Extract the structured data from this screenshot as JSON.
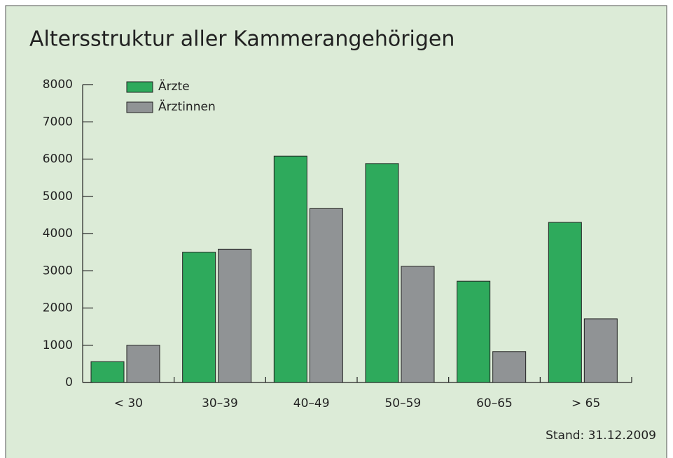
{
  "chart_data": {
    "type": "bar",
    "title": "Altersstruktur aller Kammerangehörigen",
    "categories": [
      "< 30",
      "30–39",
      "40–49",
      "50–59",
      "60–65",
      "> 65"
    ],
    "series": [
      {
        "name": "Ärzte",
        "color": "#2eaa5c",
        "values": [
          560,
          3500,
          6080,
          5880,
          2720,
          4300
        ]
      },
      {
        "name": "Ärztinnen",
        "color": "#909395",
        "values": [
          1000,
          3580,
          4670,
          3120,
          830,
          1710
        ]
      }
    ],
    "ylim": [
      0,
      8000
    ],
    "yticks": [
      0,
      1000,
      2000,
      3000,
      4000,
      5000,
      6000,
      7000,
      8000
    ],
    "legend": "top-left",
    "annotation": "Stand: 31.12.2009"
  }
}
